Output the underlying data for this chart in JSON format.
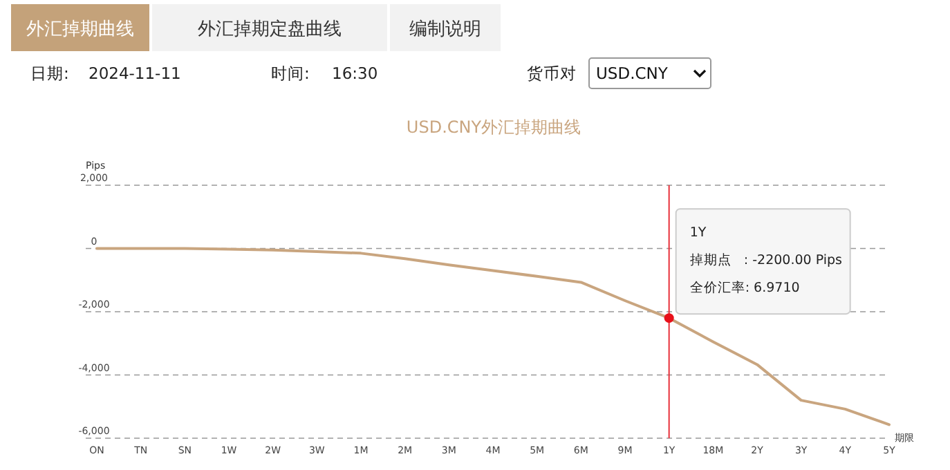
{
  "chart_data": {
    "type": "line",
    "title": "USD.CNY外汇掉期曲线",
    "xlabel": "期限",
    "ylabel": "Pips",
    "categories": [
      "ON",
      "TN",
      "SN",
      "1W",
      "2W",
      "3W",
      "1M",
      "2M",
      "3M",
      "4M",
      "5M",
      "6M",
      "9M",
      "1Y",
      "18M",
      "2Y",
      "3Y",
      "4Y",
      "5Y"
    ],
    "series": [
      {
        "color": "#c9a57f",
        "values": [
          0,
          0,
          0,
          -20,
          -50,
          -100,
          -150,
          -320,
          -520,
          -700,
          -880,
          -1070,
          -1650,
          -2200,
          -2950,
          -3670,
          -4800,
          -5080,
          -5570
        ]
      }
    ],
    "ylim": [
      -6000,
      2000
    ],
    "yticks": [
      {
        "value": -6000,
        "label": "-6,000"
      },
      {
        "value": -4000,
        "label": "-4,000"
      },
      {
        "value": -2000,
        "label": "-2,000"
      },
      0,
      {
        "value": 2000,
        "label": "2,000"
      }
    ],
    "grid": "y",
    "marker": "none",
    "line_style": "solid",
    "ref_lines": [
      {
        "axis": "x",
        "value": "1Y",
        "color": "#e8303a"
      }
    ],
    "annotations": [
      "外汇掉期曲线",
      "外汇掉期定盘曲线",
      "编制说明",
      "日期:",
      "2024-11-11",
      "时间:",
      "16:30",
      "货币对",
      "USD.CNY",
      {
        "text": "1Y\n掉期点   : -2200.00 Pips\n全价汇率: 6.9710",
        "x": "1Y",
        "y": -2200
      }
    ]
  }
}
